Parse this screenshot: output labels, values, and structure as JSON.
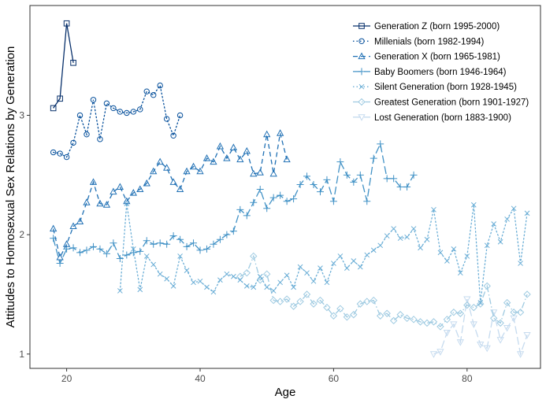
{
  "chart_data": {
    "type": "line",
    "title": "",
    "xlabel": "Age",
    "ylabel": "Attitudes to Homosexual Sex Relations by Generation",
    "xlim": [
      14.5,
      91
    ],
    "ylim": [
      0.88,
      3.92
    ],
    "x_ticks": [
      20,
      40,
      60,
      80
    ],
    "y_ticks": [
      1,
      2,
      3
    ],
    "grid": false,
    "legend_position": "top-right",
    "series": [
      {
        "name": "Generation Z (born 1995-2000)",
        "color": "#08306b",
        "dash": "solid",
        "marker": "square",
        "x": [
          18,
          19,
          20,
          21
        ],
        "y": [
          3.06,
          3.14,
          3.77,
          3.44
        ]
      },
      {
        "name": "Millenials (born 1982-1994)",
        "color": "#08519c",
        "dash": "dotted",
        "marker": "circle",
        "x": [
          18,
          19,
          20,
          21,
          22,
          23,
          24,
          25,
          26,
          27,
          28,
          29,
          30,
          31,
          32,
          33,
          34,
          35,
          36,
          37
        ],
        "y": [
          2.69,
          2.68,
          2.65,
          2.77,
          3.0,
          2.84,
          3.13,
          2.8,
          3.1,
          3.06,
          3.03,
          3.02,
          3.03,
          3.05,
          3.2,
          3.17,
          3.25,
          2.97,
          2.83,
          3.0
        ]
      },
      {
        "name": "Generation X (born 1965-1981)",
        "color": "#2171b5",
        "dash": "dashed",
        "marker": "triangle",
        "x": [
          18,
          19,
          20,
          21,
          22,
          23,
          24,
          25,
          26,
          27,
          28,
          29,
          30,
          31,
          32,
          33,
          34,
          35,
          36,
          37,
          38,
          39,
          40,
          41,
          42,
          43,
          44,
          45,
          46,
          47,
          48,
          49,
          50,
          51,
          52,
          53
        ],
        "y": [
          2.05,
          1.81,
          1.92,
          2.07,
          2.11,
          2.27,
          2.44,
          2.26,
          2.25,
          2.36,
          2.4,
          2.28,
          2.35,
          2.38,
          2.43,
          2.53,
          2.61,
          2.56,
          2.44,
          2.38,
          2.53,
          2.57,
          2.53,
          2.64,
          2.61,
          2.74,
          2.64,
          2.73,
          2.63,
          2.7,
          2.51,
          2.52,
          2.84,
          2.51,
          2.85,
          2.63
        ]
      },
      {
        "name": "Baby Boomers (born 1946-1964)",
        "color": "#4292c6",
        "dash": "longdash",
        "marker": "plus",
        "x": [
          18,
          19,
          20,
          21,
          22,
          23,
          24,
          25,
          26,
          27,
          28,
          29,
          30,
          31,
          32,
          33,
          34,
          35,
          36,
          37,
          38,
          39,
          40,
          41,
          42,
          43,
          44,
          45,
          46,
          47,
          48,
          49,
          50,
          51,
          52,
          53,
          54,
          55,
          56,
          57,
          58,
          59,
          60,
          61,
          62,
          63,
          64,
          65,
          66,
          67,
          68,
          69,
          70,
          71,
          72
        ],
        "y": [
          1.97,
          1.76,
          1.88,
          1.89,
          1.85,
          1.87,
          1.9,
          1.88,
          1.84,
          1.93,
          1.8,
          1.83,
          1.85,
          1.86,
          1.95,
          1.92,
          1.93,
          1.92,
          1.99,
          1.96,
          1.9,
          1.93,
          1.87,
          1.88,
          1.92,
          1.96,
          2.0,
          2.03,
          2.21,
          2.16,
          2.27,
          2.38,
          2.22,
          2.31,
          2.33,
          2.28,
          2.3,
          2.42,
          2.49,
          2.42,
          2.36,
          2.46,
          2.28,
          2.61,
          2.5,
          2.44,
          2.5,
          2.28,
          2.64,
          2.76,
          2.47,
          2.47,
          2.4,
          2.4,
          2.5
        ]
      },
      {
        "name": "Silent Generation (born 1928-1945)",
        "color": "#6baed6",
        "dash": "dotted",
        "marker": "x",
        "x": [
          28,
          29,
          30,
          31,
          32,
          33,
          34,
          35,
          36,
          37,
          38,
          39,
          40,
          41,
          42,
          43,
          44,
          45,
          46,
          47,
          48,
          49,
          50,
          51,
          52,
          53,
          54,
          55,
          56,
          57,
          58,
          59,
          60,
          61,
          62,
          63,
          64,
          65,
          66,
          67,
          68,
          69,
          70,
          71,
          72,
          73,
          74,
          75,
          76,
          77,
          78,
          79,
          80,
          81,
          82,
          83,
          84,
          85,
          86,
          87,
          88,
          89
        ],
        "y": [
          1.53,
          2.26,
          1.88,
          1.54,
          1.82,
          1.75,
          1.67,
          1.63,
          1.57,
          1.82,
          1.7,
          1.6,
          1.61,
          1.56,
          1.52,
          1.62,
          1.67,
          1.65,
          1.62,
          1.57,
          1.56,
          1.65,
          1.56,
          1.53,
          1.6,
          1.66,
          1.56,
          1.73,
          1.68,
          1.61,
          1.72,
          1.6,
          1.76,
          1.82,
          1.72,
          1.78,
          1.73,
          1.83,
          1.87,
          1.91,
          1.99,
          2.05,
          1.97,
          1.98,
          2.05,
          1.89,
          1.96,
          2.21,
          1.85,
          1.78,
          1.88,
          1.68,
          1.82,
          2.25,
          1.43,
          1.91,
          2.09,
          1.94,
          2.13,
          2.22,
          1.76,
          2.18
        ]
      },
      {
        "name": "Greatest Generation (born 1901-1927)",
        "color": "#9ecae1",
        "dash": "dashdot",
        "marker": "diamond",
        "x": [
          46,
          47,
          48,
          49,
          50,
          51,
          52,
          53,
          54,
          55,
          56,
          57,
          58,
          59,
          60,
          61,
          62,
          63,
          64,
          65,
          66,
          67,
          68,
          69,
          70,
          71,
          72,
          73,
          74,
          75,
          76,
          77,
          78,
          79,
          80,
          81,
          82,
          83,
          84,
          85,
          86,
          87,
          88,
          89
        ],
        "y": [
          1.65,
          1.68,
          1.82,
          1.62,
          1.67,
          1.45,
          1.44,
          1.46,
          1.4,
          1.44,
          1.5,
          1.42,
          1.45,
          1.39,
          1.32,
          1.38,
          1.31,
          1.33,
          1.42,
          1.44,
          1.45,
          1.32,
          1.34,
          1.28,
          1.33,
          1.3,
          1.29,
          1.27,
          1.26,
          1.27,
          1.23,
          1.29,
          1.35,
          1.34,
          1.41,
          1.39,
          1.42,
          1.57,
          1.3,
          1.26,
          1.43,
          1.35,
          1.35,
          1.5
        ]
      },
      {
        "name": "Lost Generation (born 1883-1900)",
        "color": "#c6dbef",
        "dash": "longdash",
        "marker": "triangle-down",
        "x": [
          75,
          76,
          77,
          78,
          79,
          80,
          81,
          82,
          83,
          84,
          85,
          86,
          87,
          88,
          89
        ],
        "y": [
          1.0,
          1.02,
          1.18,
          1.25,
          1.1,
          1.46,
          1.25,
          1.08,
          1.05,
          1.35,
          1.12,
          1.22,
          1.3,
          1.0,
          1.16
        ]
      }
    ]
  }
}
